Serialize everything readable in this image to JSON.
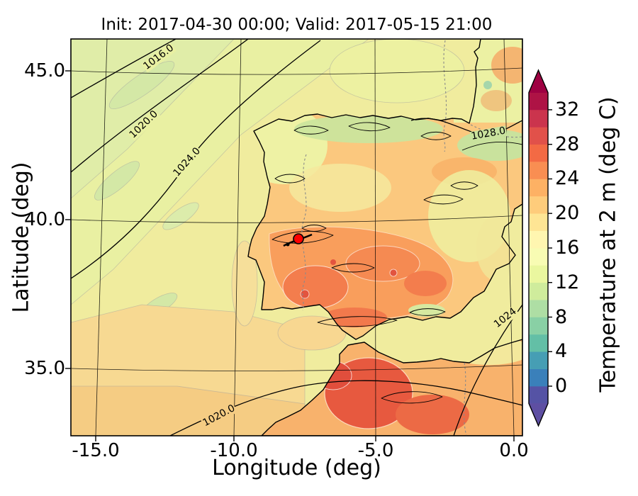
{
  "figure": {
    "title": "Init: 2017-04-30 00:00; Valid: 2017-05-15 21:00"
  },
  "axes": {
    "xlabel": "Longitude (deg)",
    "ylabel": "Latitude (deg)",
    "xticklabels": [
      "-15.0",
      "-10.0",
      "-5.0",
      "0.0"
    ],
    "yticklabels": [
      "45.0",
      "40.0",
      "35.0"
    ]
  },
  "colorbar": {
    "label": "Temperature at 2 m (deg C)",
    "tick_labels": [
      "0",
      "4",
      "8",
      "12",
      "16",
      "20",
      "24",
      "28",
      "32"
    ],
    "segment_colors": [
      "#5553a5",
      "#3a80ba",
      "#469eb4",
      "#63bfa6",
      "#89d0a5",
      "#aedea4",
      "#cfec9c",
      "#eaf79f",
      "#f8fcb3",
      "#fff6b0",
      "#fee594",
      "#fecc7b",
      "#fdb164",
      "#f98e52",
      "#f36a44",
      "#e1514a",
      "#cb344d",
      "#ae1345"
    ],
    "extend_under_color": "#5e4fa2",
    "extend_over_color": "#9e0142"
  },
  "contours": {
    "labels": [
      "1016.0",
      "1020.0",
      "1024.0",
      "1028.0",
      "1024",
      "1020.0"
    ]
  },
  "marker": {
    "color": "#ff0000"
  },
  "chart_data": {
    "type": "heatmap",
    "title": "Init: 2017-04-30 00:00; Valid: 2017-05-15 21:00",
    "xlabel": "Longitude (deg)",
    "ylabel": "Latitude (deg)",
    "xlim": [
      -15.9,
      0.4
    ],
    "ylim": [
      32.8,
      46.1
    ],
    "xticks": [
      -15.0,
      -10.0,
      -5.0,
      0.0
    ],
    "yticks": [
      35.0,
      40.0,
      45.0
    ],
    "field": "Temperature at 2 m (deg C)",
    "colorbar_ticks": [
      0,
      4,
      8,
      12,
      16,
      20,
      24,
      28,
      32
    ],
    "colorbar_range": [
      -2,
      34
    ],
    "overlay_isobars_hPa": [
      1016,
      1020,
      1024,
      1028
    ],
    "isobar_label_readings": [
      {
        "label": "1016.0",
        "lon": -12.7,
        "lat": 45.5
      },
      {
        "label": "1020.0",
        "lon": -13.3,
        "lat": 43.2
      },
      {
        "label": "1024.0",
        "lon": -11.7,
        "lat": 42.0
      },
      {
        "label": "1028.0",
        "lon": -0.8,
        "lat": 42.9
      },
      {
        "label": "1024",
        "lon": -0.2,
        "lat": 36.7
      },
      {
        "label": "1020.0",
        "lon": -10.5,
        "lat": 33.4
      }
    ],
    "marker_point": {
      "lon": -7.8,
      "lat": 39.4
    }
  }
}
